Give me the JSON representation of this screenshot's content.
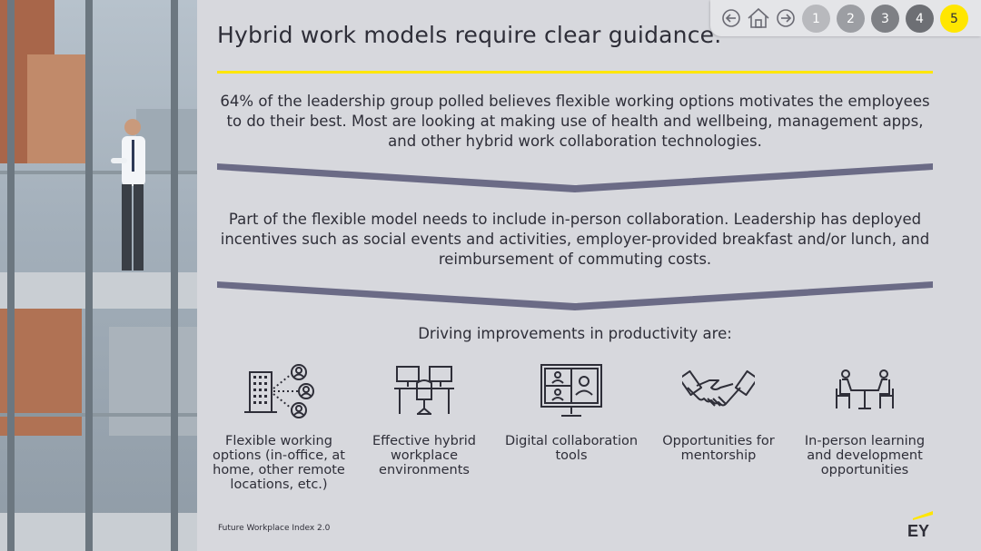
{
  "title": "Hybrid work models require clear guidance.",
  "paragraph1": "64% of the leadership group polled believes flexible working options motivates the employees to do their best. Most are looking at making use of health and wellbeing, management apps, and other hybrid work collaboration technologies.",
  "paragraph2": "Part of the flexible model needs to include in-person collaboration. Leadership has deployed incentives such as social events and activities, employer-provided breakfast and/or lunch, and reimbursement of commuting costs.",
  "driving_heading": "Driving improvements in productivity are:",
  "items": [
    {
      "label": "Flexible working options (in-office, at home, other remote locations, etc.)",
      "icon": "building-people-icon"
    },
    {
      "label": "Effective hybrid workplace environments",
      "icon": "workstation-icon"
    },
    {
      "label": "Digital collaboration tools",
      "icon": "video-conference-icon"
    },
    {
      "label": "Opportunities for mentorship",
      "icon": "handshake-icon"
    },
    {
      "label": "In-person learning and development opportunities",
      "icon": "meeting-icon"
    }
  ],
  "footer": "Future Workplace Index 2.0",
  "logo": "EY",
  "nav": {
    "back_icon": "arrow-left-icon",
    "home_icon": "home-icon",
    "forward_icon": "arrow-right-icon",
    "pages": [
      "1",
      "2",
      "3",
      "4",
      "5"
    ],
    "active_page": "5"
  },
  "colors": {
    "accent_yellow": "#ffe600",
    "background": "#d7d8dd",
    "chevron": "#6b6b86",
    "text": "#2e2e38",
    "page_inactive": "#b8b9bd",
    "page_mid": "#9c9ea3",
    "page_dark": "#7e8085",
    "page_darker": "#6d6f74"
  }
}
